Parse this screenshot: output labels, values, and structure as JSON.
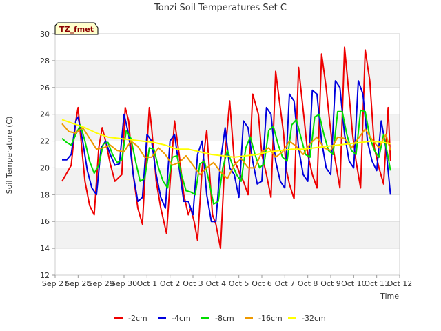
{
  "chart_data": {
    "type": "line",
    "title": "Tonzi Soil Temperatures Set C",
    "xlabel": "Time",
    "ylabel": "Soil Temperature (C)",
    "badge": "TZ_fmet",
    "ylim": [
      12,
      30
    ],
    "yticks": [
      12,
      14,
      16,
      18,
      20,
      22,
      24,
      26,
      28,
      30
    ],
    "xlim": [
      0,
      15
    ],
    "xticks": [
      "Sep 27",
      "Sep 28",
      "Sep 29",
      "Sep 30",
      "Oct 1",
      "Oct 2",
      "Oct 3",
      "Oct 4",
      "Oct 5",
      "Oct 6",
      "Oct 7",
      "Oct 8",
      "Oct 9",
      "Oct 10",
      "Oct 11",
      "Oct 12"
    ],
    "grid": true,
    "legend_position": "bottom",
    "colors": {
      "-2cm": "#ee0000",
      "-4cm": "#0000dd",
      "-8cm": "#00dd00",
      "-16cm": "#ee9900",
      "-32cm": "#ffff00"
    },
    "series": [
      {
        "name": "-2cm",
        "x": [
          0.3,
          0.5,
          0.7,
          0.9,
          1.0,
          1.1,
          1.3,
          1.5,
          1.7,
          1.8,
          1.9,
          2.05,
          2.2,
          2.4,
          2.6,
          2.9,
          3.05,
          3.2,
          3.4,
          3.6,
          3.8,
          3.9,
          4.1,
          4.2,
          4.4,
          4.6,
          4.85,
          5.05,
          5.2,
          5.4,
          5.6,
          5.8,
          5.9,
          6.05,
          6.2,
          6.4,
          6.6,
          6.85,
          7.0,
          7.2,
          7.4,
          7.6,
          7.8,
          7.95,
          8.05,
          8.2,
          8.4,
          8.6,
          8.85,
          9.0,
          9.2,
          9.4,
          9.6,
          9.8,
          9.95,
          10.05,
          10.2,
          10.4,
          10.6,
          10.85,
          11.0,
          11.2,
          11.4,
          11.6,
          11.8,
          11.95,
          12.05,
          12.2,
          12.4,
          12.6,
          12.85,
          12.95,
          13.1,
          13.3,
          13.5,
          13.7,
          13.9,
          14.1,
          14.3,
          14.5,
          14.6
        ],
        "values": [
          19.0,
          19.6,
          20.2,
          23.5,
          24.5,
          22.5,
          19.0,
          17.2,
          16.5,
          19.0,
          21.5,
          23.0,
          22.0,
          20.3,
          19.0,
          19.5,
          24.5,
          23.5,
          19.5,
          17.0,
          15.8,
          19.0,
          24.5,
          23.0,
          19.0,
          17.0,
          15.1,
          20.0,
          23.5,
          21.0,
          18.0,
          16.5,
          17.0,
          16.0,
          14.6,
          20.0,
          22.8,
          16.5,
          15.8,
          14.0,
          21.0,
          25.0,
          20.5,
          20.0,
          19.5,
          19.0,
          18.0,
          25.5,
          24.0,
          21.0,
          19.5,
          17.8,
          27.2,
          24.5,
          22.5,
          20.0,
          18.8,
          17.7,
          27.5,
          23.5,
          21.0,
          19.5,
          18.5,
          28.5,
          26.0,
          23.5,
          22.0,
          20.5,
          18.5,
          29.0,
          24.5,
          22.5,
          20.5,
          18.5,
          28.8,
          26.5,
          21.5,
          20.0,
          18.8,
          24.5,
          20.5
        ]
      },
      {
        "name": "-4cm",
        "x": [
          0.3,
          0.5,
          0.7,
          0.9,
          1.0,
          1.2,
          1.4,
          1.6,
          1.8,
          2.0,
          2.2,
          2.4,
          2.6,
          2.8,
          3.0,
          3.2,
          3.4,
          3.6,
          3.8,
          4.0,
          4.2,
          4.4,
          4.6,
          4.8,
          5.0,
          5.2,
          5.4,
          5.6,
          5.8,
          6.0,
          6.2,
          6.4,
          6.6,
          6.8,
          7.0,
          7.2,
          7.4,
          7.6,
          7.8,
          8.0,
          8.2,
          8.4,
          8.6,
          8.8,
          9.0,
          9.2,
          9.4,
          9.6,
          9.8,
          10.0,
          10.2,
          10.4,
          10.6,
          10.8,
          11.0,
          11.2,
          11.4,
          11.6,
          11.8,
          12.0,
          12.2,
          12.4,
          12.6,
          12.8,
          13.0,
          13.2,
          13.4,
          13.6,
          13.8,
          14.0,
          14.2,
          14.4,
          14.6
        ],
        "values": [
          20.6,
          20.6,
          21.0,
          23.5,
          23.8,
          22.0,
          19.8,
          18.5,
          18.0,
          21.5,
          22.0,
          21.0,
          20.2,
          20.3,
          24.0,
          22.5,
          19.5,
          17.5,
          17.8,
          22.5,
          22.0,
          19.5,
          17.8,
          17.0,
          22.0,
          22.5,
          20.0,
          17.5,
          17.5,
          16.5,
          21.0,
          22.0,
          18.0,
          16.0,
          16.0,
          20.5,
          23.0,
          20.0,
          19.5,
          17.8,
          23.5,
          23.0,
          20.5,
          18.8,
          19.0,
          24.5,
          24.0,
          20.5,
          19.0,
          18.5,
          25.5,
          25.0,
          21.5,
          19.5,
          19.0,
          25.8,
          25.5,
          22.0,
          20.0,
          19.5,
          26.5,
          26.0,
          22.5,
          20.5,
          20.0,
          26.5,
          25.5,
          22.0,
          20.5,
          19.8,
          23.5,
          21.5,
          18.0
        ]
      },
      {
        "name": "-8cm",
        "x": [
          0.3,
          0.5,
          0.7,
          0.9,
          1.1,
          1.3,
          1.5,
          1.7,
          1.9,
          2.1,
          2.3,
          2.5,
          2.7,
          2.9,
          3.1,
          3.3,
          3.5,
          3.7,
          3.9,
          4.1,
          4.3,
          4.5,
          4.7,
          4.9,
          5.1,
          5.3,
          5.5,
          5.7,
          5.9,
          6.1,
          6.3,
          6.5,
          6.7,
          6.9,
          7.1,
          7.3,
          7.5,
          7.7,
          7.9,
          8.1,
          8.3,
          8.5,
          8.7,
          8.9,
          9.1,
          9.3,
          9.5,
          9.7,
          9.9,
          10.1,
          10.3,
          10.5,
          10.7,
          10.9,
          11.1,
          11.3,
          11.5,
          11.7,
          11.9,
          12.1,
          12.3,
          12.5,
          12.7,
          12.9,
          13.1,
          13.3,
          13.5,
          13.7,
          13.9,
          14.1,
          14.3,
          14.5,
          14.6
        ],
        "values": [
          22.2,
          21.9,
          21.7,
          22.5,
          23.2,
          22.0,
          20.5,
          19.6,
          20.2,
          21.8,
          21.9,
          21.0,
          20.4,
          20.6,
          22.8,
          22.2,
          20.5,
          19.0,
          19.2,
          21.5,
          21.4,
          20.0,
          19.0,
          18.5,
          20.8,
          20.9,
          19.5,
          18.3,
          18.2,
          18.0,
          20.3,
          20.5,
          19.0,
          17.3,
          17.5,
          20.0,
          21.3,
          20.3,
          19.5,
          19.0,
          21.5,
          22.3,
          21.0,
          20.0,
          20.3,
          22.8,
          23.1,
          21.8,
          20.8,
          20.5,
          23.2,
          23.6,
          22.3,
          21.0,
          20.8,
          23.8,
          24.0,
          22.5,
          21.3,
          21.0,
          24.2,
          24.2,
          22.5,
          21.3,
          21.0,
          24.3,
          24.2,
          22.3,
          21.3,
          20.8,
          22.5,
          20.8,
          19.8
        ]
      },
      {
        "name": "-16cm",
        "x": [
          0.3,
          0.6,
          0.9,
          1.2,
          1.5,
          1.8,
          2.1,
          2.4,
          2.7,
          3.0,
          3.3,
          3.6,
          3.9,
          4.2,
          4.5,
          4.8,
          5.1,
          5.4,
          5.7,
          6.0,
          6.3,
          6.6,
          6.9,
          7.2,
          7.5,
          7.8,
          8.1,
          8.4,
          8.7,
          9.0,
          9.3,
          9.6,
          9.9,
          10.2,
          10.5,
          10.8,
          11.1,
          11.4,
          11.7,
          12.0,
          12.3,
          12.6,
          12.9,
          13.2,
          13.5,
          13.8,
          14.1,
          14.4,
          14.6
        ],
        "values": [
          23.3,
          22.7,
          22.6,
          23.0,
          22.2,
          21.4,
          21.5,
          21.7,
          21.3,
          21.2,
          22.0,
          21.6,
          20.8,
          20.8,
          21.5,
          21.0,
          20.2,
          20.4,
          20.9,
          20.2,
          19.5,
          20.0,
          20.4,
          19.7,
          19.2,
          20.2,
          20.7,
          20.0,
          20.0,
          21.2,
          21.5,
          20.8,
          21.2,
          22.0,
          21.6,
          21.0,
          21.8,
          22.3,
          21.5,
          21.3,
          22.3,
          22.2,
          21.5,
          22.2,
          22.9,
          22.1,
          21.5,
          22.5,
          21.3
        ]
      },
      {
        "name": "-32cm",
        "x": [
          0.3,
          0.8,
          1.3,
          1.8,
          2.3,
          2.8,
          3.3,
          3.8,
          4.3,
          4.8,
          5.3,
          5.8,
          6.3,
          6.8,
          7.3,
          7.8,
          8.3,
          8.8,
          9.3,
          9.8,
          10.3,
          10.8,
          11.3,
          11.8,
          12.3,
          12.8,
          13.3,
          13.8,
          14.3,
          14.6
        ],
        "values": [
          23.6,
          23.3,
          23.0,
          22.6,
          22.3,
          22.2,
          22.1,
          22.0,
          21.9,
          21.7,
          21.4,
          21.4,
          21.2,
          21.0,
          20.9,
          20.8,
          20.9,
          21.0,
          21.2,
          21.3,
          21.4,
          21.4,
          21.5,
          21.6,
          21.7,
          21.8,
          21.9,
          22.0,
          21.9,
          21.8
        ]
      }
    ]
  }
}
